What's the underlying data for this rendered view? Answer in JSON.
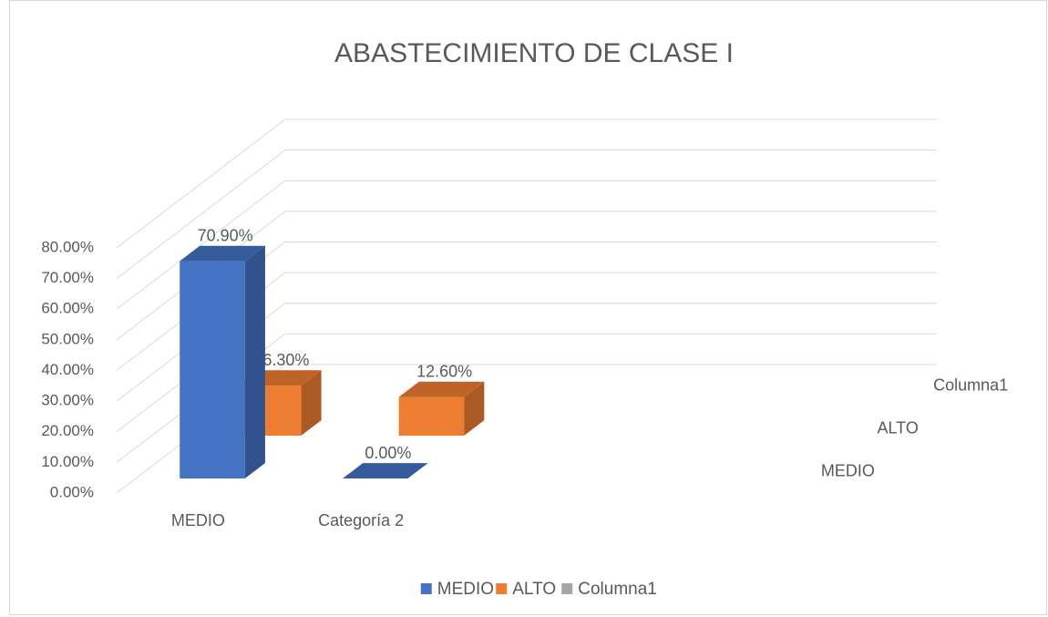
{
  "chart_data": {
    "type": "bar3d",
    "title": "ABASTECIMIENTO  DE CLASE I",
    "categories": [
      "MEDIO",
      "Categoría 2"
    ],
    "series": [
      {
        "name": "MEDIO",
        "color": "#4472c4",
        "values": [
          70.9,
          0
        ],
        "value_labels": [
          "70.90%",
          "0.00%"
        ]
      },
      {
        "name": "ALTO",
        "color": "#ed7d31",
        "values": [
          16.3,
          12.6
        ],
        "value_labels": [
          "16.30%",
          "12.60%"
        ]
      },
      {
        "name": "Columna1",
        "color": "#a5a5a5",
        "values": [
          null,
          null
        ]
      }
    ],
    "ylim": [
      0,
      80
    ],
    "yticks": [
      {
        "value": 0,
        "label": "0.00%"
      },
      {
        "value": 10,
        "label": "10.00%"
      },
      {
        "value": 20,
        "label": "20.00%"
      },
      {
        "value": 30,
        "label": "30.00%"
      },
      {
        "value": 40,
        "label": "40.00%"
      },
      {
        "value": 50,
        "label": "50.00%"
      },
      {
        "value": 60,
        "label": "60.00%"
      },
      {
        "value": 70,
        "label": "70.00%"
      },
      {
        "value": 80,
        "label": "80.00%"
      }
    ],
    "grid": true,
    "legend": "bottom"
  }
}
